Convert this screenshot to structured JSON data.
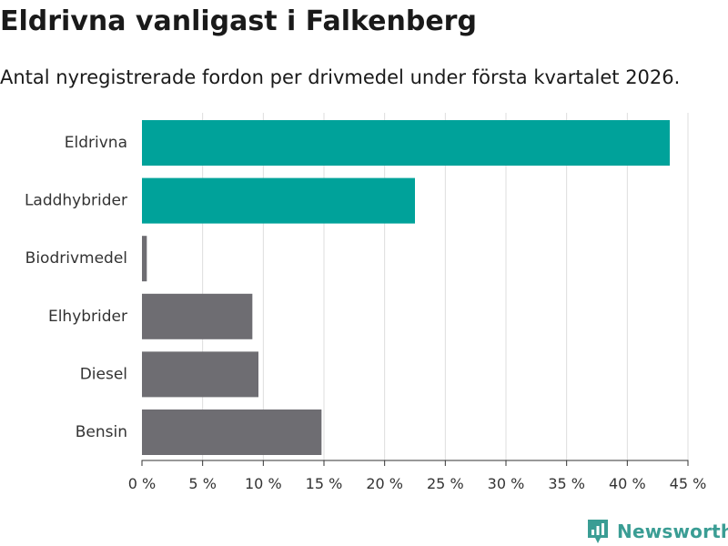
{
  "header": {
    "title": "Eldrivna vanligast i Falkenberg",
    "subtitle": "Antal nyregistrerade fordon per drivmedel under första kvartalet 2026."
  },
  "brand": {
    "name": "Newsworthy",
    "icon": "newsworthy-logo-icon"
  },
  "colors": {
    "highlight": "#00a29a",
    "other": "#6e6d72",
    "grid": "#dddddd",
    "brand": "#3a9d94"
  },
  "chart_data": {
    "type": "bar",
    "orientation": "horizontal",
    "title": "Eldrivna vanligast i Falkenberg",
    "subtitle": "Antal nyregistrerade fordon per drivmedel under första kvartalet 2026.",
    "xlabel": "",
    "ylabel": "",
    "categories": [
      "Eldrivna",
      "Laddhybrider",
      "Biodrivmedel",
      "Elhybrider",
      "Diesel",
      "Bensin"
    ],
    "values": [
      43.5,
      22.5,
      0.4,
      9.1,
      9.6,
      14.8
    ],
    "highlight": [
      true,
      true,
      false,
      false,
      false,
      false
    ],
    "xlim": [
      0,
      45
    ],
    "xticks": [
      0,
      5,
      10,
      15,
      20,
      25,
      30,
      35,
      40,
      45
    ],
    "xtick_labels": [
      "0 %",
      "5 %",
      "10 %",
      "15 %",
      "20 %",
      "25 %",
      "30 %",
      "35 %",
      "40 %",
      "45 %"
    ],
    "grid": true,
    "legend": "none"
  }
}
